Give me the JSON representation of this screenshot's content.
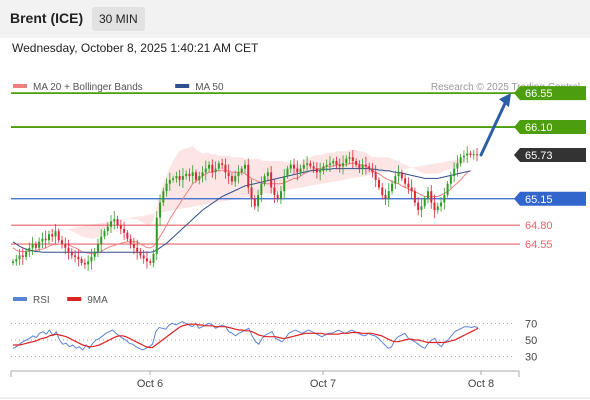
{
  "header": {
    "instrument": "Brent (ICE)",
    "timeframe": "30 MIN",
    "timestamp": "Wednesday, October 8, 2025 1:40:21 AM CET"
  },
  "colors": {
    "resistance": "#4c9e0c",
    "pivot": "#3366cc",
    "support": "#e8636a",
    "price_badge": "#333333",
    "candle_up": "#2e9e22",
    "candle_down": "#d9283a",
    "ma20": "#f08080",
    "bollinger_fill": "#fde0e0",
    "ma50": "#2d4f8e",
    "rsi": "#5b84d6",
    "rsi_ma": "#dd2222",
    "arrow": "#2d5fa8"
  },
  "chart_data": [
    {
      "type": "candlestick",
      "title": "",
      "legend": [
        {
          "name": "MA 20 + Bollinger Bands",
          "color": "#f08080"
        },
        {
          "name": "MA 50",
          "color": "#2d4f8e"
        }
      ],
      "legend_position": "top-left",
      "credit": "Research © 2025 Trading Central",
      "ylim": [
        64.1,
        66.75
      ],
      "x_tick_labels": [
        "Oct 6",
        "Oct 7",
        "Oct 8"
      ],
      "levels": [
        {
          "value": 66.55,
          "label": "66.55",
          "kind": "resistance"
        },
        {
          "value": 66.1,
          "label": "66.10",
          "kind": "resistance"
        },
        {
          "value": 65.73,
          "label": "65.73",
          "kind": "last_price"
        },
        {
          "value": 65.15,
          "label": "65.15",
          "kind": "pivot"
        },
        {
          "value": 64.8,
          "label": "64.80",
          "kind": "support"
        },
        {
          "value": 64.55,
          "label": "64.55",
          "kind": "support"
        }
      ],
      "forecast_target": 66.55,
      "close": [
        64.32,
        64.35,
        64.4,
        64.38,
        64.45,
        64.5,
        64.55,
        64.5,
        64.58,
        64.62,
        64.6,
        64.68,
        64.65,
        64.72,
        64.6,
        64.55,
        64.5,
        64.45,
        64.4,
        64.38,
        64.35,
        64.3,
        64.28,
        64.32,
        64.38,
        64.45,
        64.55,
        64.65,
        64.72,
        64.78,
        64.85,
        64.88,
        64.8,
        64.75,
        64.7,
        64.62,
        64.55,
        64.5,
        64.45,
        64.4,
        64.36,
        64.32,
        64.3,
        64.42,
        64.9,
        65.1,
        65.25,
        65.35,
        65.4,
        65.42,
        65.45,
        65.4,
        65.45,
        65.48,
        65.45,
        65.5,
        65.4,
        65.45,
        65.5,
        65.55,
        65.6,
        65.5,
        65.55,
        65.62,
        65.6,
        65.5,
        65.45,
        65.38,
        65.45,
        65.5,
        65.55,
        65.6,
        65.3,
        65.15,
        65.05,
        65.2,
        65.35,
        65.45,
        65.5,
        65.3,
        65.2,
        65.15,
        65.25,
        65.45,
        65.55,
        65.6,
        65.55,
        65.5,
        65.55,
        65.6,
        65.62,
        65.58,
        65.55,
        65.5,
        65.52,
        65.58,
        65.6,
        65.62,
        65.65,
        65.6,
        65.58,
        65.62,
        65.68,
        65.7,
        65.65,
        65.6,
        65.55,
        65.6,
        65.58,
        65.55,
        65.5,
        65.4,
        65.3,
        65.2,
        65.15,
        65.25,
        65.35,
        65.45,
        65.5,
        65.42,
        65.35,
        65.3,
        65.25,
        65.1,
        65.0,
        65.05,
        65.15,
        65.25,
        65.1,
        65.0,
        65.05,
        65.1,
        65.2,
        65.35,
        65.45,
        65.55,
        65.62,
        65.7,
        65.72,
        65.75,
        65.73,
        65.74,
        65.73
      ],
      "ma20": [
        64.5,
        64.47,
        64.45,
        64.45,
        64.45,
        64.46,
        64.46,
        64.46,
        64.48,
        64.48,
        64.5,
        64.52,
        64.54,
        64.54,
        64.55,
        64.55,
        64.55,
        64.54,
        64.52,
        64.5,
        64.48,
        64.45,
        64.44,
        64.43,
        64.42,
        64.42,
        64.44,
        64.45,
        64.48,
        64.5,
        64.52,
        64.53,
        64.55,
        64.56,
        64.57,
        64.58,
        64.58,
        64.58,
        64.58,
        64.55,
        64.53,
        64.5,
        64.5,
        64.52,
        64.58,
        64.65,
        64.72,
        64.8,
        64.88,
        64.95,
        65.02,
        65.08,
        65.15,
        65.22,
        65.28,
        65.35,
        65.38,
        65.42,
        65.45,
        65.48,
        65.5,
        65.5,
        65.52,
        65.52,
        65.52,
        65.52,
        65.52,
        65.5,
        65.5,
        65.5,
        65.5,
        65.48,
        65.45,
        65.42,
        65.4,
        65.38,
        65.36,
        65.35,
        65.35,
        65.35,
        65.35,
        65.35,
        65.35,
        65.36,
        65.38,
        65.4,
        65.42,
        65.42,
        65.45,
        65.48,
        65.5,
        65.52,
        65.54,
        65.55,
        65.55,
        65.56,
        65.58,
        65.58,
        65.58,
        65.6,
        65.6,
        65.6,
        65.6,
        65.62,
        65.62,
        65.62,
        65.6,
        65.6,
        65.58,
        65.55,
        65.52,
        65.5,
        65.48,
        65.45,
        65.42,
        65.4,
        65.38,
        65.36,
        65.35,
        65.32,
        65.3,
        65.28,
        65.26,
        65.25,
        65.22,
        65.2,
        65.18,
        65.18,
        65.18,
        65.18,
        65.18,
        65.2,
        65.22,
        65.25,
        65.28,
        65.32,
        65.36,
        65.4,
        65.45,
        65.5,
        65.52
      ],
      "bb_width": [
        0.12,
        0.16,
        0.18,
        0.2,
        0.2,
        0.2,
        0.2,
        0.2,
        0.2,
        0.2,
        0.2,
        0.2,
        0.2,
        0.2,
        0.2,
        0.2,
        0.2,
        0.2,
        0.2,
        0.2,
        0.2,
        0.2,
        0.2,
        0.2,
        0.2,
        0.2,
        0.2,
        0.22,
        0.25,
        0.28,
        0.3,
        0.3,
        0.3,
        0.3,
        0.3,
        0.3,
        0.3,
        0.3,
        0.3,
        0.3,
        0.3,
        0.3,
        0.3,
        0.34,
        0.45,
        0.55,
        0.62,
        0.66,
        0.68,
        0.7,
        0.7,
        0.7,
        0.66,
        0.6,
        0.55,
        0.5,
        0.42,
        0.36,
        0.3,
        0.28,
        0.26,
        0.24,
        0.22,
        0.2,
        0.2,
        0.2,
        0.2,
        0.2,
        0.2,
        0.2,
        0.2,
        0.2,
        0.22,
        0.25,
        0.28,
        0.3,
        0.3,
        0.3,
        0.3,
        0.3,
        0.3,
        0.3,
        0.3,
        0.28,
        0.26,
        0.22,
        0.2,
        0.18,
        0.18,
        0.18,
        0.18,
        0.18,
        0.18,
        0.18,
        0.18,
        0.18,
        0.18,
        0.18,
        0.18,
        0.18,
        0.18,
        0.18,
        0.18,
        0.18,
        0.18,
        0.18,
        0.18,
        0.18,
        0.18,
        0.18,
        0.18,
        0.2,
        0.22,
        0.25,
        0.28,
        0.3,
        0.3,
        0.3,
        0.3,
        0.3,
        0.3,
        0.3,
        0.3,
        0.3,
        0.3,
        0.3,
        0.3,
        0.3,
        0.3,
        0.3,
        0.3,
        0.3,
        0.3,
        0.28,
        0.26,
        0.24,
        0.22,
        0.2,
        0.2,
        0.18,
        0.18,
        0.18,
        0.18
      ],
      "ma50": [
        64.58,
        64.55,
        64.52,
        64.5,
        64.48,
        64.47,
        64.46,
        64.45,
        64.45,
        64.44,
        64.44,
        64.44,
        64.44,
        64.44,
        64.44,
        64.44,
        64.44,
        64.44,
        64.44,
        64.44,
        64.44,
        64.44,
        64.44,
        64.44,
        64.44,
        64.44,
        64.44,
        64.44,
        64.44,
        64.44,
        64.44,
        64.44,
        64.44,
        64.44,
        64.44,
        64.44,
        64.44,
        64.44,
        64.44,
        64.44,
        64.44,
        64.44,
        64.44,
        64.45,
        64.47,
        64.5,
        64.53,
        64.56,
        64.6,
        64.64,
        64.68,
        64.72,
        64.76,
        64.8,
        64.84,
        64.88,
        64.92,
        64.96,
        65.0,
        65.03,
        65.06,
        65.09,
        65.12,
        65.15,
        65.18,
        65.2,
        65.22,
        65.24,
        65.26,
        65.28,
        65.3,
        65.32,
        65.33,
        65.34,
        65.35,
        65.36,
        65.37,
        65.38,
        65.39,
        65.4,
        65.41,
        65.42,
        65.43,
        65.44,
        65.45,
        65.46,
        65.47,
        65.48,
        65.49,
        65.5,
        65.51,
        65.52,
        65.52,
        65.53,
        65.53,
        65.54,
        65.54,
        65.54,
        65.55,
        65.55,
        65.55,
        65.55,
        65.55,
        65.55,
        65.55,
        65.55,
        65.55,
        65.55,
        65.55,
        65.55,
        65.54,
        65.54,
        65.53,
        65.53,
        65.52,
        65.52,
        65.51,
        65.5,
        65.5,
        65.49,
        65.48,
        65.47,
        65.46,
        65.45,
        65.44,
        65.43,
        65.42,
        65.42,
        65.42,
        65.42,
        65.42,
        65.43,
        65.44,
        65.45,
        65.46,
        65.47,
        65.48,
        65.49,
        65.5,
        65.51,
        65.52
      ]
    },
    {
      "type": "line",
      "legend": [
        {
          "name": "RSI",
          "color": "#5b84d6"
        },
        {
          "name": "9MA",
          "color": "#dd2222"
        }
      ],
      "legend_position": "top-left",
      "ylim": [
        20,
        80
      ],
      "y_ticks": [
        70,
        50,
        30
      ],
      "series": [
        {
          "name": "RSI",
          "values": [
            40,
            42,
            45,
            48,
            50,
            52,
            55,
            53,
            58,
            60,
            57,
            62,
            55,
            60,
            50,
            45,
            46,
            42,
            44,
            40,
            42,
            38,
            44,
            40,
            46,
            50,
            52,
            55,
            58,
            60,
            62,
            58,
            55,
            52,
            50,
            46,
            45,
            42,
            40,
            38,
            40,
            42,
            45,
            60,
            65,
            64,
            63,
            68,
            70,
            68,
            70,
            72,
            70,
            68,
            66,
            70,
            64,
            66,
            68,
            70,
            68,
            64,
            66,
            68,
            66,
            60,
            58,
            55,
            58,
            60,
            62,
            64,
            55,
            48,
            45,
            52,
            56,
            58,
            60,
            52,
            50,
            48,
            52,
            58,
            60,
            62,
            60,
            58,
            60,
            62,
            60,
            58,
            56,
            54,
            56,
            58,
            58,
            60,
            62,
            60,
            58,
            60,
            62,
            60,
            58,
            56,
            55,
            58,
            56,
            55,
            52,
            48,
            44,
            40,
            42,
            50,
            54,
            56,
            58,
            52,
            50,
            48,
            45,
            42,
            40,
            46,
            50,
            52,
            45,
            42,
            48,
            50,
            55,
            60,
            62,
            64,
            66,
            66,
            65,
            66,
            65
          ]
        },
        {
          "name": "9MA",
          "values": [
            44,
            44,
            44,
            45,
            46,
            47,
            48,
            49,
            51,
            52,
            53,
            55,
            56,
            57,
            56,
            55,
            54,
            52,
            50,
            48,
            46,
            44,
            43,
            42,
            42,
            43,
            44,
            46,
            48,
            50,
            52,
            54,
            55,
            55,
            54,
            52,
            50,
            48,
            46,
            44,
            42,
            41,
            41,
            44,
            47,
            50,
            53,
            56,
            59,
            62,
            65,
            67,
            68,
            69,
            69,
            69,
            68,
            68,
            67,
            67,
            67,
            66,
            66,
            66,
            66,
            65,
            64,
            63,
            62,
            62,
            61,
            61,
            60,
            58,
            56,
            55,
            54,
            54,
            54,
            54,
            53,
            52,
            52,
            53,
            54,
            55,
            56,
            57,
            58,
            58,
            58,
            58,
            58,
            58,
            57,
            57,
            57,
            57,
            57,
            58,
            58,
            58,
            59,
            59,
            59,
            58,
            58,
            58,
            58,
            57,
            56,
            55,
            53,
            51,
            49,
            48,
            48,
            49,
            50,
            51,
            51,
            50,
            50,
            49,
            48,
            47,
            47,
            47,
            47,
            47,
            47,
            48,
            49,
            50,
            52,
            54,
            56,
            58,
            60,
            62,
            64
          ]
        }
      ],
      "x_tick_labels": [
        "Oct 6",
        "Oct 7",
        "Oct 8"
      ]
    }
  ]
}
